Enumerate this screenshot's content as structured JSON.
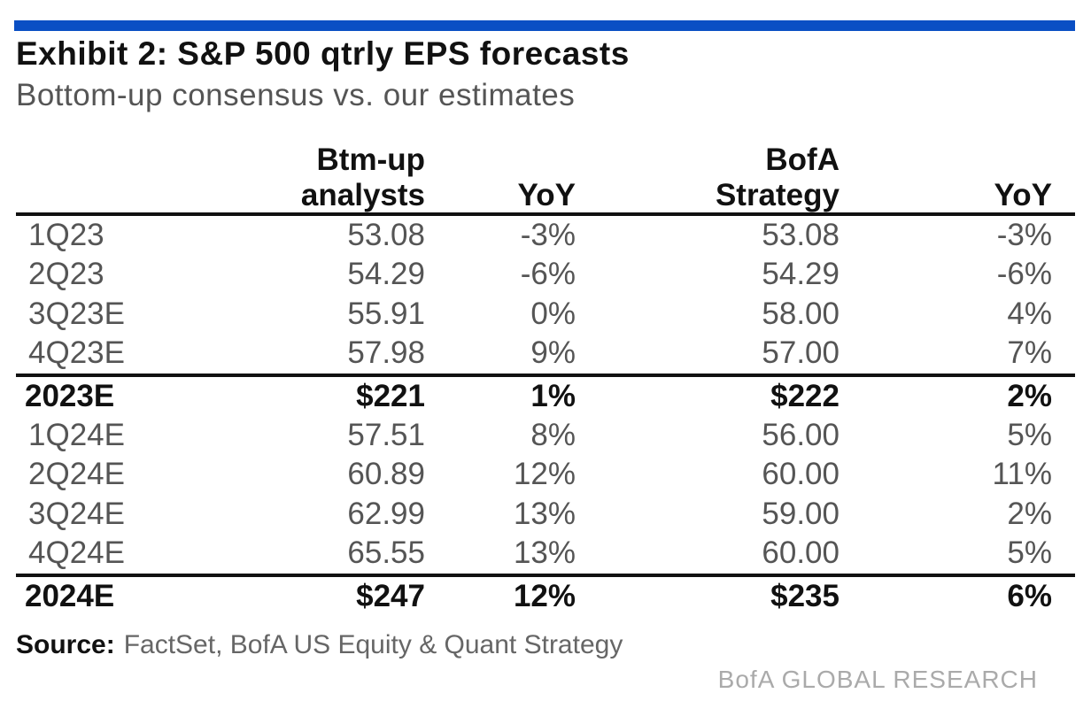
{
  "title": "Exhibit 2: S&P 500 qtrly EPS forecasts",
  "subtitle": "Bottom-up consensus vs. our estimates",
  "accent_color": "#0a4fc4",
  "chart_data": {
    "type": "table",
    "columns": [
      {
        "line1": "",
        "line2": ""
      },
      {
        "line1": "Btm-up",
        "line2": "analysts"
      },
      {
        "line1": "",
        "line2": "YoY"
      },
      {
        "line1": "BofA",
        "line2": "Strategy"
      },
      {
        "line1": "",
        "line2": "YoY"
      }
    ],
    "rows": [
      {
        "label": "1Q23",
        "btm_up": "53.08",
        "btm_yoy": "-3%",
        "bofa": "53.08",
        "bofa_yoy": "-3%",
        "total": false
      },
      {
        "label": "2Q23",
        "btm_up": "54.29",
        "btm_yoy": "-6%",
        "bofa": "54.29",
        "bofa_yoy": "-6%",
        "total": false
      },
      {
        "label": "3Q23E",
        "btm_up": "55.91",
        "btm_yoy": "0%",
        "bofa": "58.00",
        "bofa_yoy": "4%",
        "total": false
      },
      {
        "label": "4Q23E",
        "btm_up": "57.98",
        "btm_yoy": "9%",
        "bofa": "57.00",
        "bofa_yoy": "7%",
        "total": false
      },
      {
        "label": "2023E",
        "btm_up": "$221",
        "btm_yoy": "1%",
        "bofa": "$222",
        "bofa_yoy": "2%",
        "total": true
      },
      {
        "label": "1Q24E",
        "btm_up": "57.51",
        "btm_yoy": "8%",
        "bofa": "56.00",
        "bofa_yoy": "5%",
        "total": false
      },
      {
        "label": "2Q24E",
        "btm_up": "60.89",
        "btm_yoy": "12%",
        "bofa": "60.00",
        "bofa_yoy": "11%",
        "total": false
      },
      {
        "label": "3Q24E",
        "btm_up": "62.99",
        "btm_yoy": "13%",
        "bofa": "59.00",
        "bofa_yoy": "2%",
        "total": false
      },
      {
        "label": "4Q24E",
        "btm_up": "65.55",
        "btm_yoy": "13%",
        "bofa": "60.00",
        "bofa_yoy": "5%",
        "total": false
      },
      {
        "label": "2024E",
        "btm_up": "$247",
        "btm_yoy": "12%",
        "bofa": "$235",
        "bofa_yoy": "6%",
        "total": true
      }
    ]
  },
  "source": {
    "label": "Source:",
    "text": "FactSet, BofA US Equity & Quant Strategy"
  },
  "brand": "BofA GLOBAL RESEARCH"
}
